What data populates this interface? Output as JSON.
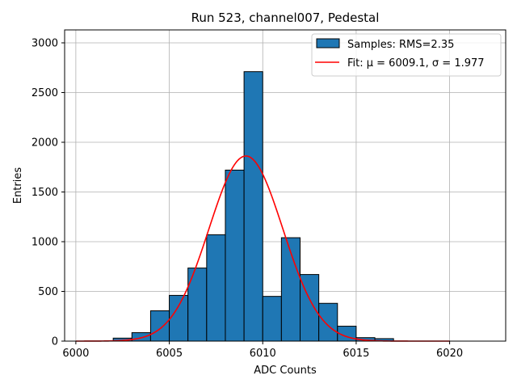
{
  "chart_data": {
    "type": "bar",
    "subtype": "histogram",
    "title": "Run 523, channel007, Pedestal",
    "xlabel": "ADC Counts",
    "ylabel": "Entries",
    "xlim": [
      5999.4,
      6023.0
    ],
    "ylim": [
      0,
      3130
    ],
    "xticks": [
      6000,
      6005,
      6010,
      6015,
      6020
    ],
    "yticks": [
      0,
      500,
      1000,
      1500,
      2000,
      2500,
      3000
    ],
    "grid": true,
    "legend_position": "top-right",
    "colors": {
      "bars": "#1f77b4",
      "bar_edge": "#000000",
      "fit": "#ff0000",
      "grid": "#b0b0b0"
    },
    "series": [
      {
        "name": "Samples: RMS=2.35",
        "kind": "histogram",
        "bin_width": 1,
        "bin_edges": [
          6002,
          6003,
          6004,
          6005,
          6006,
          6007,
          6008,
          6009,
          6010,
          6011,
          6012,
          6013,
          6014,
          6015,
          6016,
          6017
        ],
        "values": [
          30,
          85,
          305,
          460,
          735,
          1070,
          1720,
          2710,
          450,
          1040,
          670,
          380,
          150,
          35,
          25
        ]
      },
      {
        "name": "Fit: μ = 6009.1, σ = 1.977",
        "kind": "gaussian_fit",
        "mu": 6009.1,
        "sigma": 1.977,
        "amplitude": 1862,
        "x_range": [
          6000,
          6020
        ]
      }
    ]
  }
}
